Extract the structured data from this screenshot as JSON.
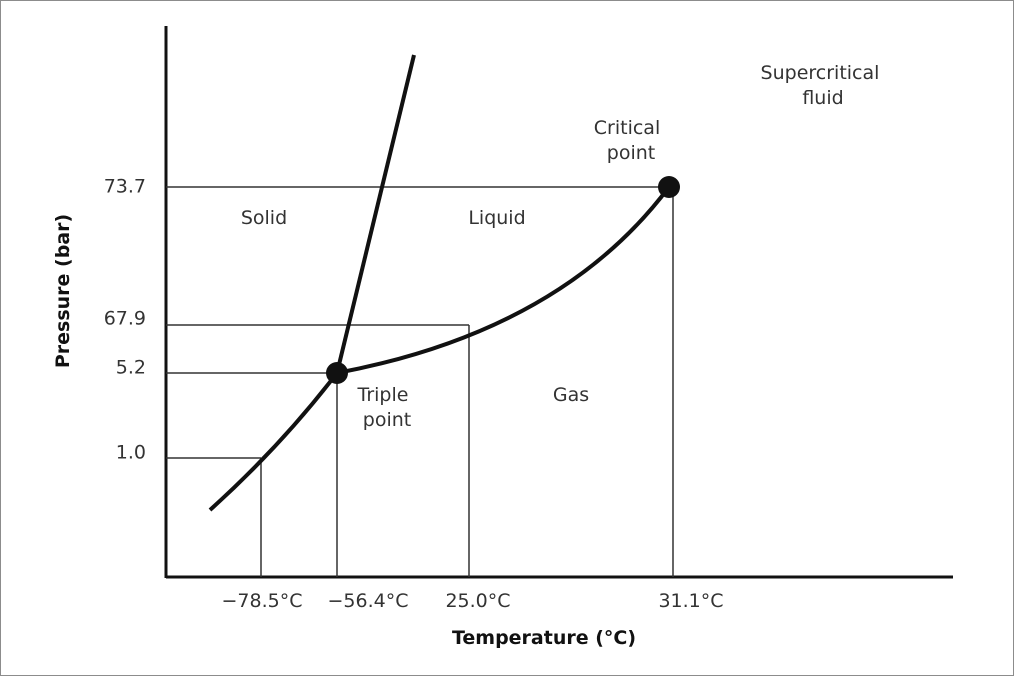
{
  "diagram": {
    "x_axis_title": "Temperature (°C)",
    "y_axis_title": "Pressure (bar)",
    "y_ticks": [
      "73.7",
      "67.9",
      "5.2",
      "1.0"
    ],
    "x_ticks": [
      "−78.5°C",
      "−56.4°C",
      "25.0°C",
      "31.1°C"
    ],
    "regions": {
      "solid": "Solid",
      "liquid": "Liquid",
      "gas": "Gas",
      "supercritical_line1": "Supercritical",
      "supercritical_line2": "fluid"
    },
    "points": {
      "triple_line1": "Triple",
      "triple_line2": "point",
      "critical_line1": "Critical",
      "critical_line2": "point"
    },
    "colors": {
      "line": "#111111",
      "guide": "#333333",
      "text": "#333333"
    }
  }
}
